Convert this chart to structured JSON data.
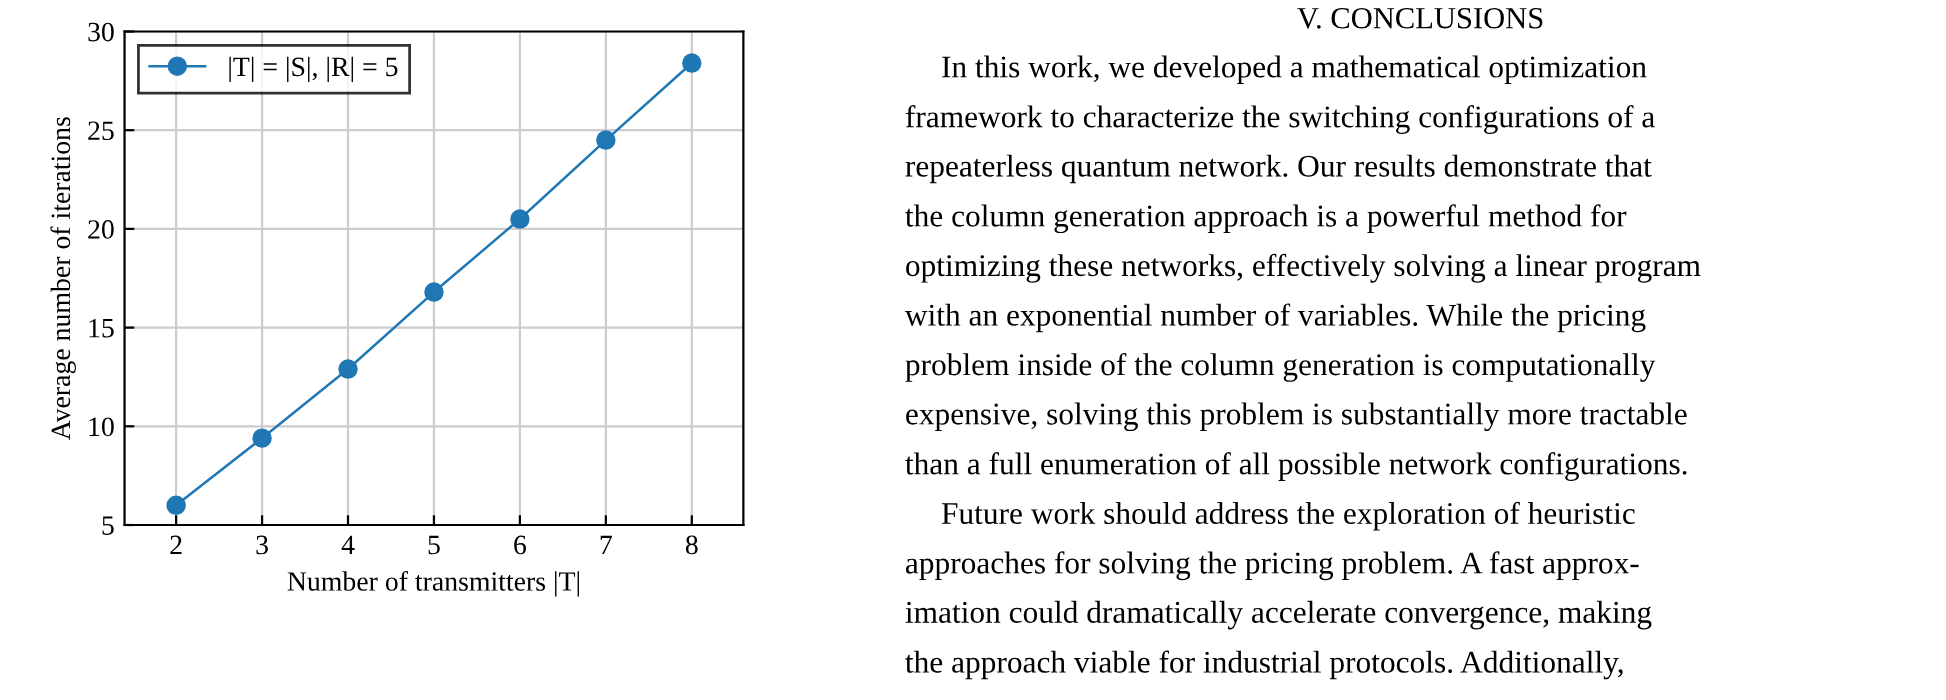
{
  "chart_data": [
    {
      "type": "line",
      "xlabel": "Number of transmitters |T|",
      "ylabel": "Average number of iterations",
      "x": [
        2,
        3,
        4,
        5,
        6,
        7,
        8
      ],
      "series": [
        {
          "name": "|T| = |S|, |R| = 5",
          "color": "#1f77b4",
          "values": [
            6.0,
            9.4,
            12.9,
            16.8,
            20.5,
            24.5,
            28.4
          ]
        }
      ],
      "xlim": [
        1.4,
        8.6
      ],
      "ylim": [
        5,
        30
      ],
      "xticks": [
        2,
        3,
        4,
        5,
        6,
        7,
        8
      ],
      "yticks": [
        5,
        10,
        15,
        20,
        25,
        30
      ],
      "grid": true,
      "legend": "top left",
      "marker": "circle",
      "line_style": "solid"
    },
    {
      "type": "other",
      "title": "V. CONCLUSIONS",
      "annotations": [
        "In this work, we developed a mathematical optimization",
        "framework to characterize the switching configurations of a",
        "repeaterless quantum network. Our results demonstrate that",
        "the column generation approach is a powerful method for",
        "optimizing these networks, effectively solving a linear program",
        "with an exponential number of variables. While the pricing",
        "problem inside of the column generation is computationally",
        "expensive, solving this problem is substantially more tractable",
        "than a full enumeration of all possible network configurations.",
        "Future work should address the exploration of heuristic",
        "approaches for solving the pricing problem. A fast approx-",
        "imation could dramatically accelerate convergence, making",
        "the approach viable for industrial protocols. Additionally,"
      ]
    }
  ]
}
